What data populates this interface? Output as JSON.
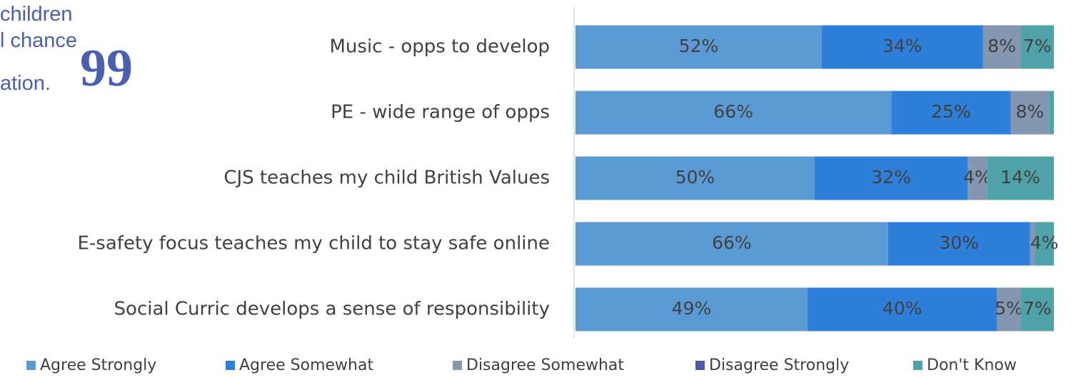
{
  "quote": {
    "lines": [
      "children",
      "l chance",
      "ation."
    ],
    "mark": "99"
  },
  "colors": {
    "agree_strongly": "#5b9bd5",
    "agree_somewhat": "#2e7fd9",
    "disagree_somewhat": "#8497b0",
    "disagree_strongly": "#4a5aa8",
    "dont_know": "#4fa3a8",
    "axis": "#d9d9d9",
    "text": "#404040"
  },
  "chart_data": {
    "type": "bar",
    "orientation": "horizontal",
    "stacked": true,
    "percent": true,
    "categories": [
      "Music - opps to develop",
      "PE -  wide range of opps",
      "CJS teaches my child British Values",
      "E-safety focus teaches my child to stay safe online",
      "Social Curric develops a sense of responsibility"
    ],
    "series": [
      {
        "name": "Agree Strongly",
        "color": "#5b9bd5",
        "values": [
          52,
          66,
          50,
          66,
          49
        ],
        "labels": [
          "52%",
          "66%",
          "50%",
          "66%",
          "49%"
        ]
      },
      {
        "name": "Agree Somewhat",
        "color": "#2e7fd9",
        "values": [
          34,
          25,
          32,
          30,
          40
        ],
        "labels": [
          "34%",
          "25%",
          "32%",
          "30%",
          "40%"
        ]
      },
      {
        "name": "Disagree Somewhat",
        "color": "#8497b0",
        "values": [
          8,
          8,
          4,
          1,
          5
        ],
        "labels": [
          "8%",
          "8%",
          "4%",
          "",
          "5%"
        ]
      },
      {
        "name": "Disagree Strongly",
        "color": "#4a5aa8",
        "values": [
          0,
          0,
          0,
          0,
          0
        ],
        "labels": [
          "",
          "",
          "",
          "",
          ""
        ]
      },
      {
        "name": "Don't Know",
        "color": "#4fa3a8",
        "values": [
          7,
          1,
          14,
          4,
          7
        ],
        "labels": [
          "7%",
          "",
          "14%",
          "4%",
          "7%"
        ]
      }
    ],
    "xlim": [
      0,
      100
    ],
    "grid": false,
    "legend_position": "bottom"
  }
}
